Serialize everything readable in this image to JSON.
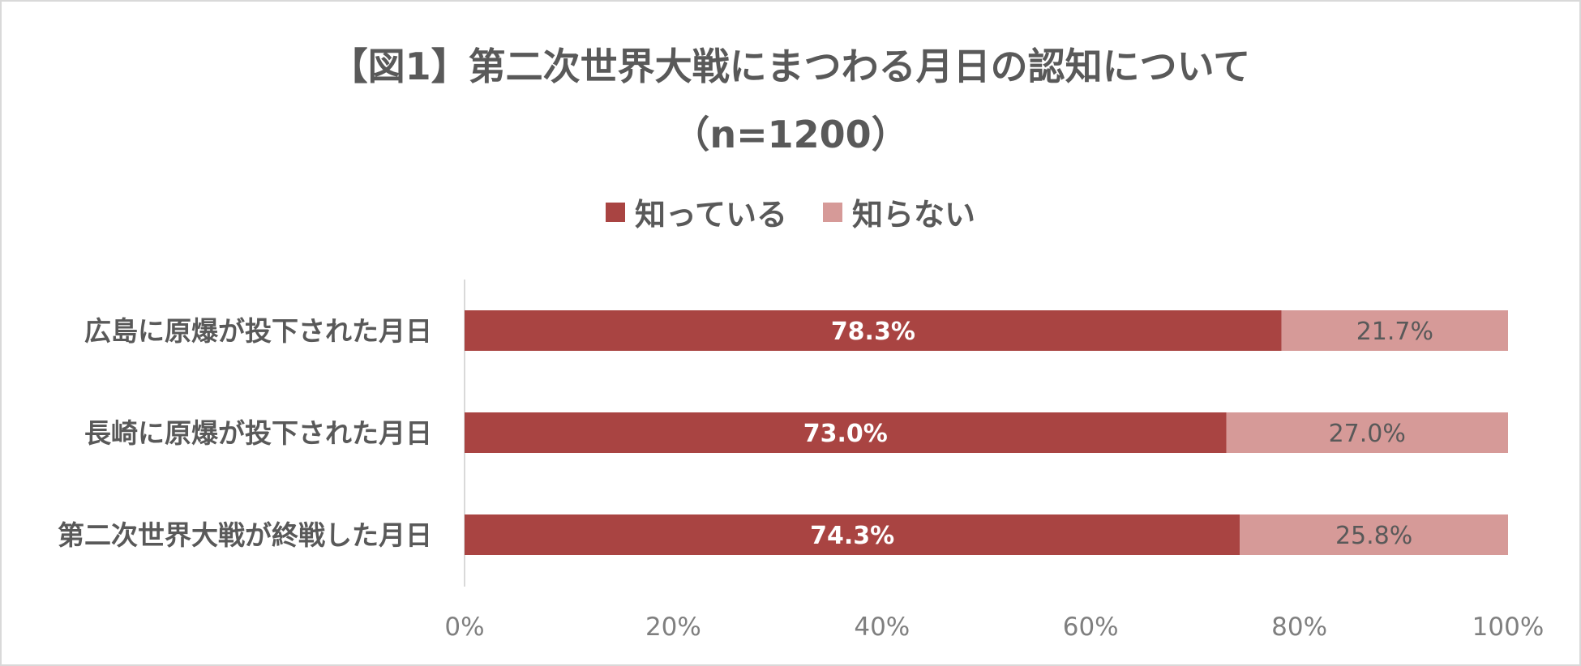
{
  "chart_data": {
    "type": "bar",
    "orientation": "horizontal",
    "stacked": true,
    "title_line1": "【図1】第二次世界大戦にまつわる月日の認知について",
    "title_line2": "（n=1200）",
    "categories": [
      "広島に原爆が投下された月日",
      "長崎に原爆が投下された月日",
      "第二次世界大戦が終戦した月日"
    ],
    "series": [
      {
        "name": "知っている",
        "color": "#a94442",
        "values": [
          78.3,
          73.0,
          74.3
        ],
        "labels": [
          "78.3%",
          "73.0%",
          "74.3%"
        ]
      },
      {
        "name": "知らない",
        "color": "#d69a98",
        "values": [
          21.7,
          27.0,
          25.8
        ],
        "labels": [
          "21.7%",
          "27.0%",
          "25.8%"
        ]
      }
    ],
    "xlim": [
      0,
      100
    ],
    "xticks": [
      "0%",
      "20%",
      "40%",
      "60%",
      "80%",
      "100%"
    ],
    "legend_position": "top",
    "grid": false
  }
}
